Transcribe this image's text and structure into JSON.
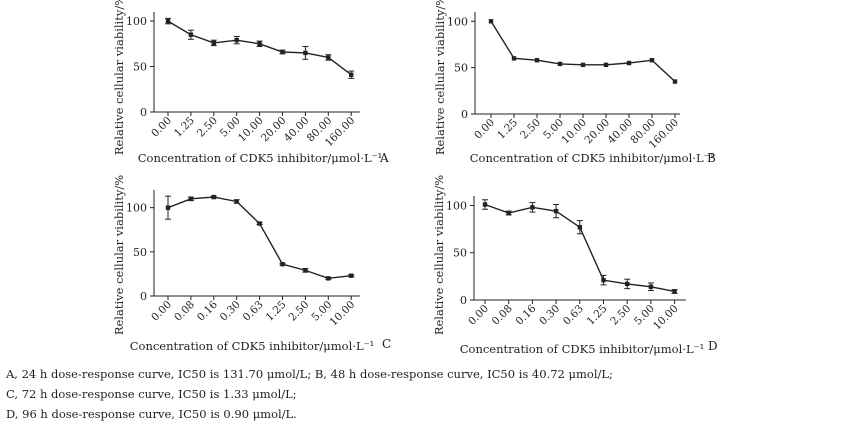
{
  "chart_data": [
    {
      "type": "line",
      "panel": "A",
      "title": "",
      "xlabel": "Concentration of CDK5 inhibitor/μmol·L⁻¹",
      "ylabel": "Relative cellular viability/%",
      "categories": [
        "0.00",
        "1.25",
        "2.50",
        "5.00",
        "10.00",
        "20.00",
        "40.00",
        "80.00",
        "160.00"
      ],
      "values": [
        100,
        85,
        76,
        79,
        75,
        66,
        65,
        60,
        41
      ],
      "errors": [
        3,
        5,
        3,
        4,
        3,
        2,
        7,
        3,
        4
      ],
      "yticks": [
        0,
        50,
        100
      ],
      "ylim": [
        0,
        110
      ],
      "grid": false
    },
    {
      "type": "line",
      "panel": "B",
      "title": "",
      "xlabel": "Concentration of CDK5 inhibitor/μmol·L⁻¹",
      "ylabel": "Relative cellular viability/%",
      "categories": [
        "0.00",
        "1.25",
        "2.50",
        "5.00",
        "10.00",
        "20.00",
        "40.00",
        "80.00",
        "160.00"
      ],
      "values": [
        100,
        60,
        58,
        54,
        53,
        53,
        55,
        58,
        35
      ],
      "errors": [
        0,
        0,
        0,
        0,
        0,
        0,
        0,
        0,
        0
      ],
      "yticks": [
        0,
        50,
        100
      ],
      "ylim": [
        0,
        110
      ],
      "grid": false
    },
    {
      "type": "line",
      "panel": "C",
      "title": "",
      "xlabel": "Concentration of CDK5 inhibitor/μmol·L⁻¹",
      "ylabel": "Relative cellular viability/%",
      "categories": [
        "0.00",
        "0.08",
        "0.16",
        "0.30",
        "0.63",
        "1.25",
        "2.50",
        "5.00",
        "10.00"
      ],
      "values": [
        100,
        110,
        112,
        107,
        82,
        36,
        29,
        20,
        23
      ],
      "errors": [
        13,
        2,
        1,
        2,
        1,
        1,
        2,
        1,
        1
      ],
      "yticks": [
        0,
        50,
        100
      ],
      "ylim": [
        0,
        120
      ],
      "grid": false
    },
    {
      "type": "line",
      "panel": "D",
      "title": "",
      "xlabel": "Concentration of CDK5 inhibitor/μmol·L⁻¹",
      "ylabel": "Relative cellular viability/%",
      "categories": [
        "0.00",
        "0.08",
        "0.16",
        "0.30",
        "0.63",
        "1.25",
        "2.50",
        "5.00",
        "10.00"
      ],
      "values": [
        101,
        92,
        98,
        94,
        77,
        21,
        17,
        14,
        9
      ],
      "errors": [
        5,
        2,
        5,
        7,
        7,
        5,
        5,
        4,
        2
      ],
      "yticks": [
        0,
        50,
        100
      ],
      "ylim": [
        0,
        110
      ],
      "grid": false
    }
  ],
  "caption": {
    "A": "A, 24 h dose-response curve, IC50 is 131.70 μmol/L;",
    "B": "B, 48 h dose-response curve, IC50 is 40.72 μmol/L;",
    "C": "C, 72 h dose-response curve, IC50 is 1.33 μmol/L;",
    "D": "D, 96 h dose-response curve, IC50 is 0.90 μmol/L."
  }
}
